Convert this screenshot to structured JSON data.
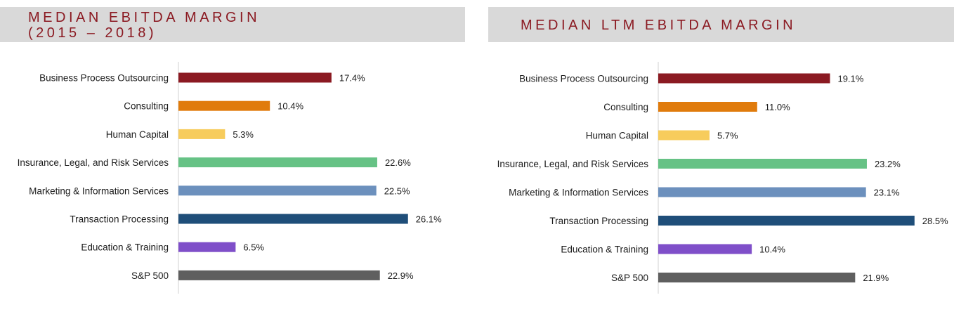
{
  "chart_data": [
    {
      "type": "bar",
      "orientation": "horizontal",
      "title": "MEDIAN EBITDA MARGIN\n(2015 – 2018)",
      "categories": [
        "Business Process Outsourcing",
        "Consulting",
        "Human Capital",
        "Insurance, Legal, and Risk Services",
        "Marketing & Information Services",
        "Transaction Processing",
        "Education & Training",
        "S&P 500"
      ],
      "values": [
        17.4,
        10.4,
        5.3,
        22.6,
        22.5,
        26.1,
        6.5,
        22.9
      ],
      "value_labels": [
        "17.4%",
        "10.4%",
        "5.3%",
        "22.6%",
        "22.5%",
        "26.1%",
        "6.5%",
        "22.9%"
      ],
      "colors": [
        "#8b1a22",
        "#e07b0c",
        "#f7cc5c",
        "#66c285",
        "#6c90bd",
        "#1f4e79",
        "#7f4fc9",
        "#5f5f5f"
      ],
      "xlim": [
        0,
        30
      ],
      "xlabel": "",
      "ylabel": ""
    },
    {
      "type": "bar",
      "orientation": "horizontal",
      "title": "MEDIAN LTM EBITDA MARGIN",
      "categories": [
        "Business Process Outsourcing",
        "Consulting",
        "Human Capital",
        "Insurance, Legal, and Risk Services",
        "Marketing & Information Services",
        "Transaction Processing",
        "Education & Training",
        "S&P 500"
      ],
      "values": [
        19.1,
        11.0,
        5.7,
        23.2,
        23.1,
        28.5,
        10.4,
        21.9
      ],
      "value_labels": [
        "19.1%",
        "11.0%",
        "5.7%",
        "23.2%",
        "23.1%",
        "28.5%",
        "10.4%",
        "21.9%"
      ],
      "colors": [
        "#8b1a22",
        "#e07b0c",
        "#f7cc5c",
        "#66c285",
        "#6c90bd",
        "#1f4e79",
        "#7f4fc9",
        "#5f5f5f"
      ],
      "xlim": [
        0,
        30
      ],
      "xlabel": "",
      "ylabel": ""
    }
  ]
}
